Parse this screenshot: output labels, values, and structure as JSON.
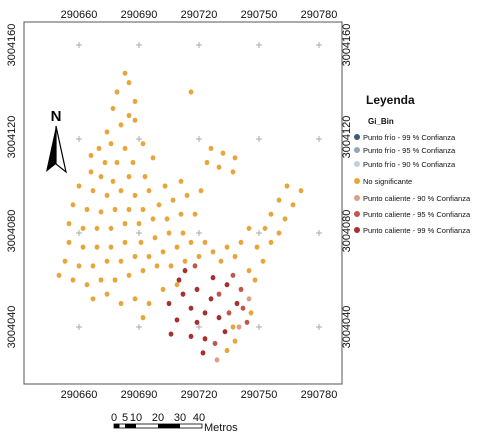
{
  "x_ticks": [
    "290660",
    "290690",
    "290720",
    "290750",
    "290780"
  ],
  "y_ticks": [
    "3004160",
    "3004120",
    "3004080",
    "3004040"
  ],
  "north_label": "N",
  "scale": {
    "labels": [
      "0",
      "5",
      "10",
      "20",
      "30",
      "40"
    ],
    "unit": "Metros"
  },
  "legend": {
    "title": "Leyenda",
    "field": "Gi_Bin",
    "items": [
      {
        "label": "Punto frío - 99 % Confianza",
        "color": "#3a5b7e"
      },
      {
        "label": "Punto frío - 95 % Confianza",
        "color": "#8fa7bf"
      },
      {
        "label": "Punto frío - 90 % Confianza",
        "color": "#c4cfd9"
      },
      {
        "label": "No significante",
        "color": "#e8a53a"
      },
      {
        "label": "Punto caliente - 90 % Confianza",
        "color": "#d99f88"
      },
      {
        "label": "Punto caliente - 95 % Confianza",
        "color": "#c0574c"
      },
      {
        "label": "Punto caliente - 99 % Confianza",
        "color": "#a82f2f"
      }
    ]
  },
  "points": {
    "no_significante": [
      [
        290683,
        3004148
      ],
      [
        290685,
        3004144
      ],
      [
        290679,
        3004140
      ],
      [
        290688,
        3004136
      ],
      [
        290677,
        3004133
      ],
      [
        290685,
        3004130
      ],
      [
        290674,
        3004123
      ],
      [
        290681,
        3004126
      ],
      [
        290688,
        3004128
      ],
      [
        290692,
        3004118
      ],
      [
        290670,
        3004116
      ],
      [
        290676,
        3004118
      ],
      [
        290683,
        3004116
      ],
      [
        290666,
        3004113
      ],
      [
        290673,
        3004110
      ],
      [
        290679,
        3004110
      ],
      [
        290687,
        3004110
      ],
      [
        290697,
        3004112
      ],
      [
        290666,
        3004106
      ],
      [
        290671,
        3004104
      ],
      [
        290677,
        3004102
      ],
      [
        290685,
        3004104
      ],
      [
        290693,
        3004104
      ],
      [
        290660,
        3004100
      ],
      [
        290667,
        3004098
      ],
      [
        290674,
        3004096
      ],
      [
        290681,
        3004098
      ],
      [
        290688,
        3004096
      ],
      [
        290695,
        3004098
      ],
      [
        290703,
        3004100
      ],
      [
        290711,
        3004102
      ],
      [
        290657,
        3004092
      ],
      [
        290664,
        3004090
      ],
      [
        290671,
        3004089
      ],
      [
        290678,
        3004090
      ],
      [
        290685,
        3004090
      ],
      [
        290692,
        3004090
      ],
      [
        290700,
        3004092
      ],
      [
        290707,
        3004094
      ],
      [
        290714,
        3004096
      ],
      [
        290721,
        3004098
      ],
      [
        290655,
        3004084
      ],
      [
        290662,
        3004082
      ],
      [
        290669,
        3004082
      ],
      [
        290676,
        3004082
      ],
      [
        290683,
        3004084
      ],
      [
        290690,
        3004084
      ],
      [
        290697,
        3004086
      ],
      [
        290704,
        3004086
      ],
      [
        290711,
        3004088
      ],
      [
        290718,
        3004088
      ],
      [
        290655,
        3004076
      ],
      [
        290662,
        3004074
      ],
      [
        290669,
        3004074
      ],
      [
        290676,
        3004074
      ],
      [
        290683,
        3004076
      ],
      [
        290691,
        3004076
      ],
      [
        290698,
        3004078
      ],
      [
        290705,
        3004080
      ],
      [
        290712,
        3004080
      ],
      [
        290653,
        3004068
      ],
      [
        290660,
        3004066
      ],
      [
        290667,
        3004066
      ],
      [
        290674,
        3004068
      ],
      [
        290681,
        3004068
      ],
      [
        290688,
        3004070
      ],
      [
        290695,
        3004070
      ],
      [
        290702,
        3004072
      ],
      [
        290709,
        3004074
      ],
      [
        290716,
        3004076
      ],
      [
        290723,
        3004076
      ],
      [
        290650,
        3004062
      ],
      [
        290657,
        3004060
      ],
      [
        290664,
        3004058
      ],
      [
        290671,
        3004060
      ],
      [
        290678,
        3004060
      ],
      [
        290685,
        3004062
      ],
      [
        290692,
        3004064
      ],
      [
        290699,
        3004066
      ],
      [
        290706,
        3004066
      ],
      [
        290713,
        3004068
      ],
      [
        290720,
        3004070
      ],
      [
        290727,
        3004072
      ],
      [
        290734,
        3004074
      ],
      [
        290741,
        3004076
      ],
      [
        290667,
        3004052
      ],
      [
        290674,
        3004054
      ],
      [
        290681,
        3004050
      ],
      [
        290688,
        3004052
      ],
      [
        290695,
        3004050
      ],
      [
        290702,
        3004056
      ],
      [
        290709,
        3004058
      ],
      [
        290731,
        3004068
      ],
      [
        290738,
        3004070
      ],
      [
        290745,
        3004064
      ],
      [
        290752,
        3004068
      ],
      [
        290749,
        3004074
      ],
      [
        290756,
        3004076
      ],
      [
        290753,
        3004082
      ],
      [
        290760,
        3004080
      ],
      [
        290756,
        3004088
      ],
      [
        290763,
        3004086
      ],
      [
        290760,
        3004094
      ],
      [
        290767,
        3004092
      ],
      [
        290764,
        3004100
      ],
      [
        290771,
        3004098
      ],
      [
        290745,
        3004082
      ],
      [
        290748,
        3004060
      ],
      [
        290692,
        3004044
      ],
      [
        290726,
        3004116
      ],
      [
        290732,
        3004114
      ],
      [
        290738,
        3004112
      ],
      [
        290730,
        3004108
      ],
      [
        290724,
        3004110
      ],
      [
        290737,
        3004106
      ],
      [
        290716,
        3004140
      ],
      [
        290738,
        3004034
      ],
      [
        290746,
        3004046
      ],
      [
        290734,
        3004030
      ],
      [
        290737,
        3004040
      ]
    ],
    "caliente_99": [
      [
        290710,
        3004060
      ],
      [
        290712,
        3004054
      ],
      [
        290705,
        3004050
      ],
      [
        290716,
        3004048
      ],
      [
        290709,
        3004043
      ],
      [
        290719,
        3004042
      ],
      [
        290706,
        3004037
      ],
      [
        290716,
        3004036
      ],
      [
        290723,
        3004035
      ],
      [
        290719,
        3004056
      ],
      [
        290726,
        3004052
      ],
      [
        290723,
        3004046
      ],
      [
        290730,
        3004044
      ],
      [
        290713,
        3004064
      ],
      [
        290727,
        3004061
      ],
      [
        290734,
        3004058
      ],
      [
        290739,
        3004050
      ],
      [
        290733,
        3004038
      ],
      [
        290722,
        3004029
      ]
    ],
    "caliente_95": [
      [
        290730,
        3004054
      ],
      [
        290737,
        3004062
      ],
      [
        290741,
        3004056
      ],
      [
        290735,
        3004046
      ],
      [
        290744,
        3004042
      ],
      [
        290718,
        3004066
      ],
      [
        290728,
        3004033
      ],
      [
        290742,
        3004048
      ]
    ],
    "caliente_90": [
      [
        290745,
        3004052
      ],
      [
        290729,
        3004026
      ],
      [
        290740,
        3004040
      ]
    ]
  }
}
